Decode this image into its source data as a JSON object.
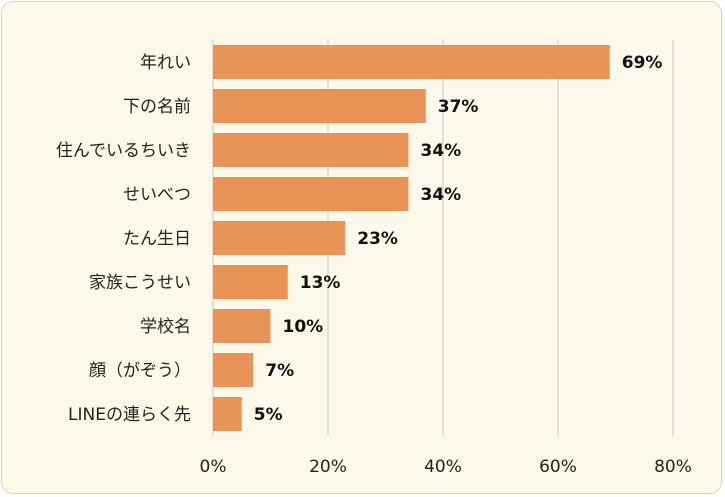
{
  "chart_data": {
    "type": "bar",
    "orientation": "horizontal",
    "title": "",
    "xlabel": "",
    "ylabel": "",
    "categories": [
      "年れい",
      "下の名前",
      "住んでいるちいき",
      "せいべつ",
      "たん生日",
      "家族こうせい",
      "学校名",
      "顔（がぞう）",
      "LINEの連らく先"
    ],
    "values": [
      69,
      37,
      34,
      34,
      23,
      13,
      10,
      7,
      5
    ],
    "value_labels": [
      "69%",
      "37%",
      "34%",
      "34%",
      "23%",
      "13%",
      "10%",
      "7%",
      "5%"
    ],
    "xlim": [
      0,
      80
    ],
    "xticks": [
      0,
      20,
      40,
      60,
      80
    ],
    "xtick_labels": [
      "0%",
      "20%",
      "40%",
      "60%",
      "80%"
    ],
    "grid": "vertical",
    "legend": "none",
    "colors": {
      "bar": "#e89358",
      "background": "#fdf9ea",
      "grid": "#d9d9d9"
    }
  }
}
